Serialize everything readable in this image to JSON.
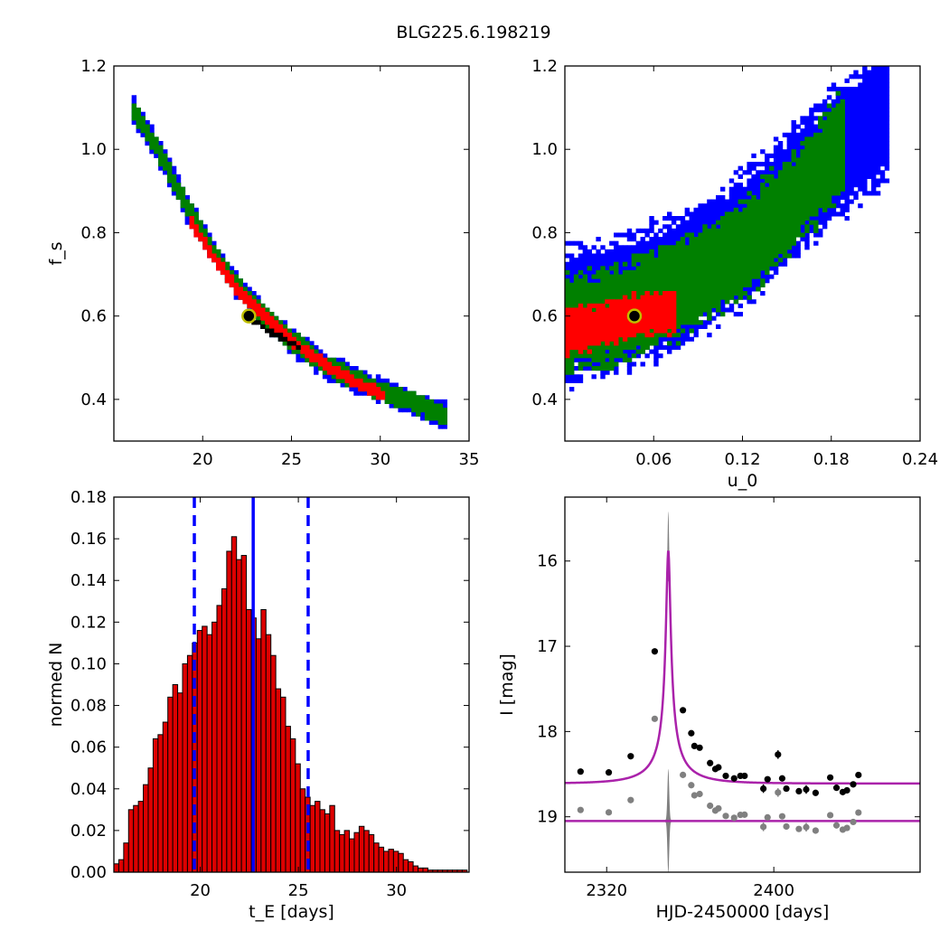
{
  "title": "BLG225.6.198219",
  "colors": {
    "blue": "#0000ff",
    "green": "#008000",
    "red": "#ff0000",
    "black": "#000000",
    "gray": "#808080",
    "magenta": "#aa22aa",
    "bar_fill": "#dd0000",
    "marker_ring": "#bfbf00"
  },
  "chart_data": [
    {
      "id": "tE-fs",
      "type": "heatmap",
      "xlabel": "",
      "ylabel": "f_s",
      "xlim": [
        15,
        35
      ],
      "ylim": [
        0.3,
        1.2
      ],
      "xticks": [
        "20",
        "25",
        "30",
        "35"
      ],
      "xtick_values": [
        20,
        25,
        30,
        35
      ],
      "yticks": [
        "0.4",
        "0.6",
        "0.8",
        "1.0",
        "1.2"
      ],
      "ytick_values": [
        0.4,
        0.6,
        0.8,
        1.0,
        1.2
      ],
      "best_fit": {
        "x": 22.6,
        "y": 0.6
      },
      "regions": [
        {
          "level": "blue",
          "ridge": [
            [
              16.0,
              1.1
            ],
            [
              17.5,
              1.0
            ],
            [
              19.0,
              0.87
            ],
            [
              20.5,
              0.76
            ],
            [
              22.0,
              0.67
            ],
            [
              23.5,
              0.6
            ],
            [
              25.0,
              0.54
            ],
            [
              27.0,
              0.48
            ],
            [
              29.5,
              0.43
            ],
            [
              32.0,
              0.39
            ],
            [
              33.7,
              0.36
            ]
          ],
          "halfwidth": 0.03
        },
        {
          "level": "green",
          "ridge": [
            [
              16.0,
              1.1
            ],
            [
              17.5,
              1.0
            ],
            [
              19.0,
              0.87
            ],
            [
              20.5,
              0.76
            ],
            [
              22.0,
              0.67
            ],
            [
              23.5,
              0.6
            ],
            [
              25.0,
              0.54
            ],
            [
              27.0,
              0.48
            ],
            [
              29.5,
              0.43
            ],
            [
              32.0,
              0.39
            ],
            [
              33.7,
              0.36
            ]
          ],
          "halfwidth": 0.022
        },
        {
          "level": "red",
          "ridge": [
            [
              19.2,
              0.83
            ],
            [
              20.5,
              0.75
            ],
            [
              22.0,
              0.66
            ],
            [
              23.5,
              0.6
            ],
            [
              25.0,
              0.54
            ],
            [
              27.0,
              0.48
            ],
            [
              29.0,
              0.43
            ],
            [
              30.2,
              0.41
            ]
          ],
          "halfwidth": 0.013
        },
        {
          "level": "black",
          "ridge": [
            [
              22.8,
              0.59
            ],
            [
              23.7,
              0.565
            ],
            [
              24.8,
              0.54
            ],
            [
              25.4,
              0.525
            ]
          ],
          "halfwidth": 0.006
        }
      ]
    },
    {
      "id": "u0-fs",
      "type": "heatmap",
      "xlabel": "u_0",
      "ylabel": "",
      "xlim": [
        0,
        0.24
      ],
      "ylim": [
        0.3,
        1.2
      ],
      "xticks": [
        "0.06",
        "0.12",
        "0.18",
        "0.24"
      ],
      "xtick_values": [
        0.06,
        0.12,
        0.18,
        0.24
      ],
      "yticks": [
        "0.4",
        "0.6",
        "0.8",
        "1.0",
        "1.2"
      ],
      "ytick_values": [
        0.4,
        0.6,
        0.8,
        1.0,
        1.2
      ],
      "best_fit": {
        "x": 0.047,
        "y": 0.6
      },
      "regions": [
        {
          "level": "blue",
          "ridge": [
            [
              0.0,
              0.6
            ],
            [
              0.04,
              0.63
            ],
            [
              0.08,
              0.69
            ],
            [
              0.12,
              0.78
            ],
            [
              0.15,
              0.88
            ],
            [
              0.18,
              0.98
            ],
            [
              0.21,
              1.07
            ],
            [
              0.22,
              1.1
            ]
          ],
          "halfwidth": 0.15
        },
        {
          "level": "green",
          "ridge": [
            [
              0.0,
              0.58
            ],
            [
              0.04,
              0.61
            ],
            [
              0.08,
              0.67
            ],
            [
              0.12,
              0.76
            ],
            [
              0.15,
              0.86
            ],
            [
              0.175,
              0.96
            ],
            [
              0.19,
              1.03
            ]
          ],
          "halfwidth": 0.11
        },
        {
          "level": "red",
          "ridge": [
            [
              0.0,
              0.56
            ],
            [
              0.02,
              0.575
            ],
            [
              0.04,
              0.595
            ],
            [
              0.06,
              0.605
            ],
            [
              0.075,
              0.61
            ]
          ],
          "halfwidth": 0.05
        }
      ]
    },
    {
      "id": "tE-hist",
      "type": "bar",
      "xlabel": "t_E [days]",
      "ylabel": "normed N",
      "xlim": [
        15.6,
        33.7
      ],
      "ylim": [
        0,
        0.18
      ],
      "xticks": [
        "20",
        "25",
        "30"
      ],
      "xtick_values": [
        20,
        25,
        30
      ],
      "yticks": [
        "0.00",
        "0.02",
        "0.04",
        "0.06",
        "0.08",
        "0.10",
        "0.12",
        "0.14",
        "0.16",
        "0.18"
      ],
      "ytick_values": [
        0,
        0.02,
        0.04,
        0.06,
        0.08,
        0.1,
        0.12,
        0.14,
        0.16,
        0.18
      ],
      "bin_start": 15.6,
      "bin_width": 0.25,
      "values": [
        0.004,
        0.006,
        0.014,
        0.03,
        0.032,
        0.034,
        0.042,
        0.05,
        0.064,
        0.066,
        0.072,
        0.084,
        0.09,
        0.086,
        0.1,
        0.104,
        0.11,
        0.116,
        0.118,
        0.114,
        0.12,
        0.128,
        0.136,
        0.154,
        0.161,
        0.15,
        0.152,
        0.126,
        0.122,
        0.112,
        0.126,
        0.114,
        0.104,
        0.088,
        0.084,
        0.07,
        0.064,
        0.052,
        0.04,
        0.036,
        0.032,
        0.034,
        0.03,
        0.028,
        0.032,
        0.02,
        0.018,
        0.02,
        0.016,
        0.019,
        0.022,
        0.02,
        0.018,
        0.014,
        0.012,
        0.01,
        0.011,
        0.01,
        0.009,
        0.006,
        0.005,
        0.003,
        0.002,
        0.002,
        0.001,
        0.001,
        0.001,
        0.001,
        0.001,
        0.001,
        0.001,
        0.001
      ],
      "median": 22.7,
      "lower": 19.7,
      "upper": 25.5
    },
    {
      "id": "lightcurve",
      "type": "scatter",
      "xlabel": "HJD-2450000 [days]",
      "ylabel": "I [mag]",
      "xlim": [
        2300,
        2470
      ],
      "ylim": [
        19.65,
        15.25
      ],
      "xticks": [
        "2320",
        "2400"
      ],
      "xtick_values": [
        2320,
        2400
      ],
      "yticks": [
        "16",
        "17",
        "18",
        "19"
      ],
      "ytick_values": [
        16,
        17,
        18,
        19
      ],
      "model": {
        "t0": 2349.5,
        "u0": 0.048,
        "tE": 22.7,
        "base": 18.61,
        "peak": 15.88
      },
      "residual_offset": 19.05,
      "points": [
        {
          "x": 2307.5,
          "y": 18.47,
          "err": 0.03
        },
        {
          "x": 2321.0,
          "y": 18.48,
          "err": 0.03
        },
        {
          "x": 2331.5,
          "y": 18.29,
          "err": 0.03
        },
        {
          "x": 2343.0,
          "y": 17.06,
          "err": 0.03
        },
        {
          "x": 2356.5,
          "y": 17.75,
          "err": 0.03
        },
        {
          "x": 2360.5,
          "y": 18.02,
          "err": 0.03
        },
        {
          "x": 2362.0,
          "y": 18.17,
          "err": 0.03
        },
        {
          "x": 2364.5,
          "y": 18.19,
          "err": 0.03
        },
        {
          "x": 2369.5,
          "y": 18.37,
          "err": 0.03
        },
        {
          "x": 2372.0,
          "y": 18.44,
          "err": 0.03
        },
        {
          "x": 2373.5,
          "y": 18.42,
          "err": 0.03
        },
        {
          "x": 2377.0,
          "y": 18.52,
          "err": 0.03
        },
        {
          "x": 2381.0,
          "y": 18.55,
          "err": 0.03
        },
        {
          "x": 2384.0,
          "y": 18.52,
          "err": 0.03
        },
        {
          "x": 2386.0,
          "y": 18.52,
          "err": 0.03
        },
        {
          "x": 2395.0,
          "y": 18.67,
          "err": 0.05
        },
        {
          "x": 2397.0,
          "y": 18.56,
          "err": 0.03
        },
        {
          "x": 2402.0,
          "y": 18.27,
          "err": 0.05
        },
        {
          "x": 2404.0,
          "y": 18.55,
          "err": 0.03
        },
        {
          "x": 2406.0,
          "y": 18.67,
          "err": 0.03
        },
        {
          "x": 2412.0,
          "y": 18.7,
          "err": 0.03
        },
        {
          "x": 2415.5,
          "y": 18.68,
          "err": 0.05
        },
        {
          "x": 2420.0,
          "y": 18.72,
          "err": 0.03
        },
        {
          "x": 2427.0,
          "y": 18.54,
          "err": 0.03
        },
        {
          "x": 2430.0,
          "y": 18.66,
          "err": 0.03
        },
        {
          "x": 2433.0,
          "y": 18.71,
          "err": 0.03
        },
        {
          "x": 2435.0,
          "y": 18.69,
          "err": 0.03
        },
        {
          "x": 2438.0,
          "y": 18.62,
          "err": 0.03
        },
        {
          "x": 2440.5,
          "y": 18.51,
          "err": 0.03
        }
      ]
    }
  ]
}
